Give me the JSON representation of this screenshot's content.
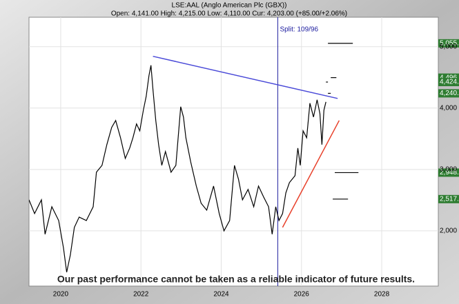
{
  "chart_data": {
    "type": "line",
    "title": "LSE:AAL (Anglo American Plc (GBX))",
    "subtitle": "Open: 4,141.00 High: 4,215.00 Low: 4,110.00 Cur: 4,203.00 (+85.00/+2.06%)",
    "annotation": "Our past performance cannot be taken as a reliable indicator of future results.",
    "split_label": "Split: 109/96",
    "split_x": 2025.41,
    "xlim": [
      2019.21,
      2029.41
    ],
    "xticks": [
      2020,
      2022,
      2024,
      2026,
      2028
    ],
    "ylim": [
      1100,
      5480
    ],
    "yticks": [
      {
        "value": 2000,
        "label": "2,000"
      },
      {
        "value": 3000,
        "label": "3,000"
      },
      {
        "value": 4000,
        "label": "4,000"
      },
      {
        "value": 5000,
        "label": "5,000"
      }
    ],
    "grid": true,
    "series": [
      {
        "name": "LSE:AAL",
        "color": "#000000",
        "x": [
          2019.21,
          2019.35,
          2019.52,
          2019.61,
          2019.78,
          2019.95,
          2020.07,
          2020.15,
          2020.24,
          2020.34,
          2020.46,
          2020.64,
          2020.81,
          2020.89,
          2021.03,
          2021.15,
          2021.27,
          2021.37,
          2021.49,
          2021.61,
          2021.72,
          2021.8,
          2021.89,
          2021.97,
          2022.06,
          2022.13,
          2022.2,
          2022.25,
          2022.3,
          2022.37,
          2022.44,
          2022.52,
          2022.61,
          2022.75,
          2022.87,
          2022.99,
          2023.06,
          2023.12,
          2023.24,
          2023.38,
          2023.5,
          2023.64,
          2023.81,
          2023.95,
          2024.07,
          2024.21,
          2024.33,
          2024.43,
          2024.53,
          2024.67,
          2024.81,
          2024.93,
          2025.05,
          2025.18,
          2025.27,
          2025.36,
          2025.44,
          2025.53,
          2025.61,
          2025.7,
          2025.84,
          2025.91,
          2025.97,
          2026.04,
          2026.13,
          2026.21,
          2026.3,
          2026.39,
          2026.46,
          2026.51,
          2026.56,
          2026.61
        ],
        "values": [
          2505,
          2281,
          2505,
          1944,
          2393,
          2168,
          1719,
          1326,
          1607,
          2056,
          2224,
          2168,
          2393,
          2955,
          3067,
          3404,
          3685,
          3798,
          3517,
          3180,
          3348,
          3517,
          3741,
          3629,
          3966,
          4191,
          4528,
          4697,
          4303,
          3798,
          3404,
          3067,
          3292,
          2955,
          3067,
          4022,
          3854,
          3517,
          3123,
          2730,
          2449,
          2337,
          2730,
          2281,
          2000,
          2168,
          3067,
          2842,
          2505,
          2674,
          2393,
          2730,
          2561,
          2393,
          1944,
          2393,
          2168,
          2281,
          2617,
          2786,
          2898,
          3348,
          3067,
          3629,
          3517,
          4079,
          3854,
          4135,
          3910,
          3404,
          3966,
          4101
        ]
      }
    ],
    "trend_lines": [
      {
        "color": "#4a4ad8",
        "x": [
          2022.3,
          2026.9
        ],
        "values": [
          4843,
          4157
        ]
      },
      {
        "color": "#e8402a",
        "x": [
          2025.53,
          2026.94
        ],
        "values": [
          2056,
          3798
        ]
      }
    ],
    "targets": [
      {
        "value": 5055,
        "label": "5,055.0",
        "x": [
          2026.66,
          2027.28
        ]
      },
      {
        "value": 4496,
        "label": "4,496.",
        "x": [
          2026.73,
          2026.87
        ]
      },
      {
        "value": 4424,
        "label": "4,424.",
        "x": [
          2026.61,
          2026.66
        ]
      },
      {
        "value": 4240,
        "label": "4,240.",
        "x": [
          2026.66,
          2026.73
        ]
      },
      {
        "value": 2948,
        "label": "2,948.",
        "x": [
          2026.83,
          2027.42
        ]
      },
      {
        "value": 2517,
        "label": "2,517.",
        "x": [
          2026.78,
          2027.16
        ]
      }
    ]
  }
}
